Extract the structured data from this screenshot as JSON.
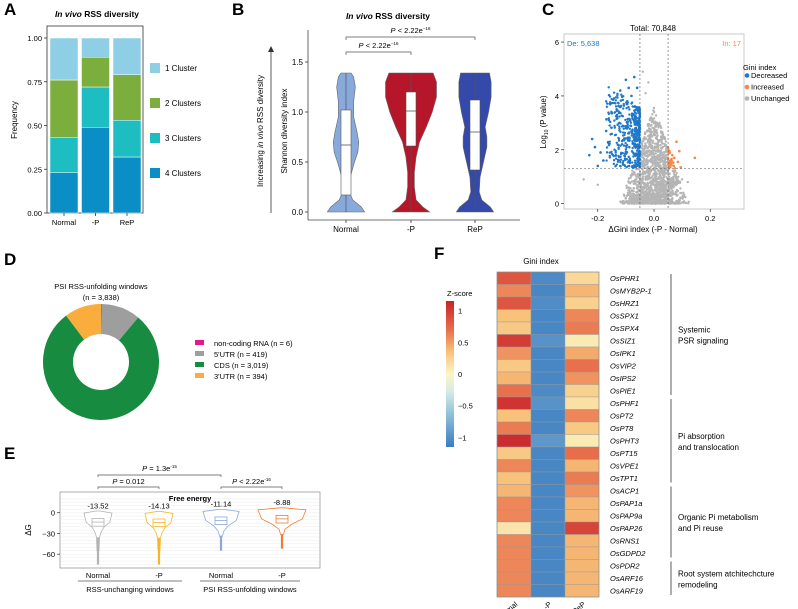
{
  "chart_data": [
    {
      "id": "A",
      "panel_label": "A",
      "type": "bar",
      "stacked": true,
      "title_italic": "In vivo",
      "title_rest": " RSS diversity",
      "xlabel": "",
      "ylabel": "Frequency",
      "ylim": [
        0,
        1
      ],
      "yticks": [
        "0.00",
        "0.25",
        "0.50",
        "0.75",
        "1.00"
      ],
      "categories": [
        "Normal",
        "-P",
        "ReP"
      ],
      "series": [
        {
          "name": "4 Clusters",
          "color": "#0b8ec6",
          "values": [
            0.23,
            0.49,
            0.32
          ]
        },
        {
          "name": "3 Clusters",
          "color": "#1ebdc2",
          "values": [
            0.2,
            0.23,
            0.21
          ]
        },
        {
          "name": "2 Clusters",
          "color": "#7cae3e",
          "values": [
            0.33,
            0.17,
            0.26
          ]
        },
        {
          "name": "1 Cluster",
          "color": "#8fcfe6",
          "values": [
            0.24,
            0.11,
            0.21
          ]
        }
      ],
      "legend": [
        "1 Cluster",
        "2 Clusters",
        "3 Clusters",
        "4 Clusters"
      ],
      "legend_position": "right"
    },
    {
      "id": "B",
      "panel_label": "B",
      "type": "violin",
      "title_italic": "In vivo",
      "title_rest": " RSS diversity",
      "ylabel": "Shannon diversity index",
      "side_arrow_label_pre": "Increasing ",
      "side_arrow_label_italic": "in vivo",
      "side_arrow_label_post": " RSS diversity",
      "ylim": [
        0,
        1.6
      ],
      "yticks": [
        "0.0",
        "0.5",
        "1.0",
        "1.5"
      ],
      "categories": [
        "Normal",
        "-P",
        "ReP"
      ],
      "colors": [
        "#88a9dc",
        "#b5162a",
        "#3449a9"
      ],
      "box": [
        {
          "q1": 0.17,
          "median": 0.67,
          "q3": 1.02,
          "max": 1.39,
          "min": 0
        },
        {
          "q1": 0.66,
          "median": 1.01,
          "q3": 1.2,
          "max": 1.39,
          "min": 0
        },
        {
          "q1": 0.42,
          "median": 0.8,
          "q3": 1.12,
          "max": 1.39,
          "min": 0
        }
      ],
      "comparisons": [
        {
          "from": "Normal",
          "to": "-P",
          "p_prefix": "P",
          "p_text": " < 2.22e",
          "p_exp": "−16"
        },
        {
          "from": "Normal",
          "to": "ReP",
          "p_prefix": "P",
          "p_text": " < 2.22e",
          "p_exp": "−16"
        }
      ]
    },
    {
      "id": "C",
      "panel_label": "C",
      "type": "scatter",
      "title": "Total: 70,848",
      "xlabel": "ΔGini index (-P - Normal)",
      "ylabel_pre": "Log",
      "ylabel_sub": "10",
      "ylabel_post": " (P value)",
      "xlim": [
        -0.32,
        0.32
      ],
      "ylim": [
        -0.2,
        6.3
      ],
      "xticks": [
        "-0.2",
        "0.0",
        "0.2"
      ],
      "yticks": [
        "0",
        "2",
        "4",
        "6"
      ],
      "thresholds": {
        "x": [
          -0.05,
          0.05
        ],
        "y": 1.3
      },
      "annotations": {
        "decreased": "De: 5,638",
        "increased": "In: 17"
      },
      "legend_title": "Gini index",
      "legend": [
        {
          "name": "Decreased",
          "color": "#1f78c8"
        },
        {
          "name": "Increased",
          "color": "#f28a4a"
        },
        {
          "name": "Unchanged",
          "color": "#b5b5b5"
        }
      ],
      "counts": {
        "decreased": 5638,
        "increased": 17,
        "total": 70848
      }
    },
    {
      "id": "D",
      "panel_label": "D",
      "type": "pie",
      "donut": true,
      "title": "PSI RSS-unfolding windows",
      "subtitle": "(n = 3,838)",
      "slices": [
        {
          "name": "non-coding RNA",
          "label": "non-coding RNA (n = 6)",
          "value": 6,
          "color": "#e5178b"
        },
        {
          "name": "5'UTR",
          "label": "5'UTR (n = 419)",
          "value": 419,
          "color": "#9e9e9e"
        },
        {
          "name": "CDS",
          "label": "CDS (n = 3,019)",
          "value": 3019,
          "color": "#178b3f"
        },
        {
          "name": "3'UTR",
          "label": "3'UTR (n = 394)",
          "value": 394,
          "color": "#f9ad3c"
        }
      ],
      "legend_position": "right"
    },
    {
      "id": "E",
      "panel_label": "E",
      "type": "violin",
      "title": "Free energy",
      "ylabel": "ΔG",
      "ylim": [
        -80,
        30
      ],
      "yticks": [
        "0",
        "−30",
        "−60"
      ],
      "categories": [
        "Normal",
        "-P",
        "Normal",
        "-P"
      ],
      "groups": [
        "RSS-unchanging windows",
        "PSI RSS-unfolding windows"
      ],
      "medians": [
        -13.52,
        -14.13,
        -11.14,
        -8.88
      ],
      "median_labels": [
        "-13.52",
        "-14.13",
        "-11.14",
        "-8.88"
      ],
      "colors": [
        "#b3b3b3",
        "#f7b62a",
        "#8aa8dd",
        "#ef7d35"
      ],
      "comparisons": [
        {
          "from": 0,
          "to": 1,
          "p_prefix": "P",
          "p_text": " = 0.012",
          "p_exp": ""
        },
        {
          "from": 0,
          "to": 2,
          "p_prefix": "P",
          "p_text": " = 1.3e",
          "p_exp": "-15"
        },
        {
          "from": 2,
          "to": 3,
          "p_prefix": "P",
          "p_text": " < 2.22e",
          "p_exp": "-16"
        }
      ]
    },
    {
      "id": "F",
      "panel_label": "F",
      "type": "heatmap",
      "title": "Gini index",
      "columns": [
        "Normal",
        "-P",
        "ReP"
      ],
      "colorbar_title": "Z-score",
      "colorbar_range": [
        -1.15,
        1.15
      ],
      "colorbar_ticks": [
        "1",
        "0.5",
        "0",
        "−0.5",
        "−1"
      ],
      "colorbar_tick_values": [
        1,
        0.5,
        0,
        -0.5,
        -1
      ],
      "rows": [
        "OsPHR1",
        "OsMYB2P-1",
        "OsHRZ1",
        "OsSPX1",
        "OsSPX4",
        "OsSIZ1",
        "OsIPK1",
        "OsVIP2",
        "OsIPS2",
        "OsPIE1",
        "OsPHF1",
        "OsPT2",
        "OsPT8",
        "OsPHT3",
        "OsPT15",
        "OsVPE1",
        "OsTPT1",
        "OsACP1",
        "OsPAP1a",
        "OsPAP9a",
        "OsPAP26",
        "OsRNS1",
        "OsGDPD2",
        "OsPDR2",
        "OsARF16",
        "OsARF19"
      ],
      "values": [
        [
          0.85,
          -1.02,
          0.2
        ],
        [
          0.6,
          -1.05,
          0.4
        ],
        [
          0.85,
          -1.0,
          0.25
        ],
        [
          0.35,
          -1.05,
          0.6
        ],
        [
          0.3,
          -1.05,
          0.65
        ],
        [
          1.0,
          -0.95,
          0.08
        ],
        [
          0.55,
          -1.05,
          0.45
        ],
        [
          0.3,
          -1.05,
          0.7
        ],
        [
          0.4,
          -1.05,
          0.55
        ],
        [
          0.7,
          -1.02,
          0.25
        ],
        [
          1.05,
          -0.95,
          0.15
        ],
        [
          0.35,
          -1.05,
          0.6
        ],
        [
          0.65,
          -1.05,
          0.3
        ],
        [
          1.1,
          -0.9,
          0.08
        ],
        [
          0.3,
          -1.05,
          0.72
        ],
        [
          0.6,
          -1.05,
          0.4
        ],
        [
          0.35,
          -1.05,
          0.65
        ],
        [
          0.4,
          -1.05,
          0.55
        ],
        [
          0.6,
          -1.05,
          0.4
        ],
        [
          0.6,
          -1.05,
          0.4
        ],
        [
          0.12,
          -1.05,
          0.95
        ],
        [
          0.6,
          -1.05,
          0.4
        ],
        [
          0.6,
          -1.05,
          0.4
        ],
        [
          0.6,
          -1.05,
          0.4
        ],
        [
          0.6,
          -1.05,
          0.4
        ],
        [
          0.6,
          -1.05,
          0.4
        ]
      ],
      "groups": [
        {
          "label_lines": [
            "Systemic",
            "PSR signaling"
          ],
          "start": 0,
          "end": 9
        },
        {
          "label_lines": [
            "Pi absorption",
            "and translocation"
          ],
          "start": 10,
          "end": 16
        },
        {
          "label_lines": [
            "Organic Pi metabolism",
            "and Pi reuse"
          ],
          "start": 17,
          "end": 22
        },
        {
          "label_lines": [
            "Root system atchitechcture",
            "remodeling"
          ],
          "start": 23,
          "end": 25
        }
      ]
    }
  ]
}
